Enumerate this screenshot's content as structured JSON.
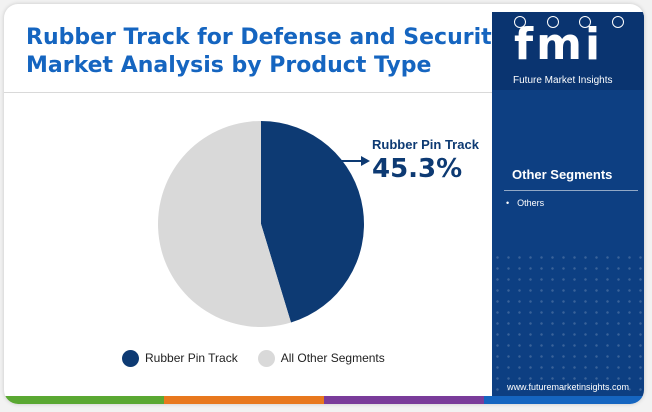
{
  "title_lines": [
    "Rubber Track for Defense and Security",
    "Market Analysis by Product Type"
  ],
  "brand": {
    "logo_text": "fmi",
    "logo_subtitle": "Future Market Insights",
    "website": "www.futuremarketinsights.com"
  },
  "side_panel": {
    "heading": "Other Segments",
    "items": [
      "Others"
    ]
  },
  "callout": {
    "label": "Rubber Pin Track",
    "value": "45.3%"
  },
  "colors": {
    "title": "#1565c0",
    "panel": "#0d3f82",
    "highlight_slice": "#0d3a73",
    "other_slice": "#d9d9d9",
    "bottom_bar": [
      "#5aa832",
      "#e8781e",
      "#7a3c9a",
      "#1565c0"
    ]
  },
  "chart_data": {
    "type": "pie",
    "slices": [
      {
        "label": "Rubber Pin Track",
        "value": 45.3,
        "color": "#0d3a73"
      },
      {
        "label": "All Other Segments",
        "value": 54.7,
        "color": "#d9d9d9"
      }
    ],
    "start_angle_deg": 0,
    "direction": "clockwise",
    "legend_position": "bottom"
  }
}
